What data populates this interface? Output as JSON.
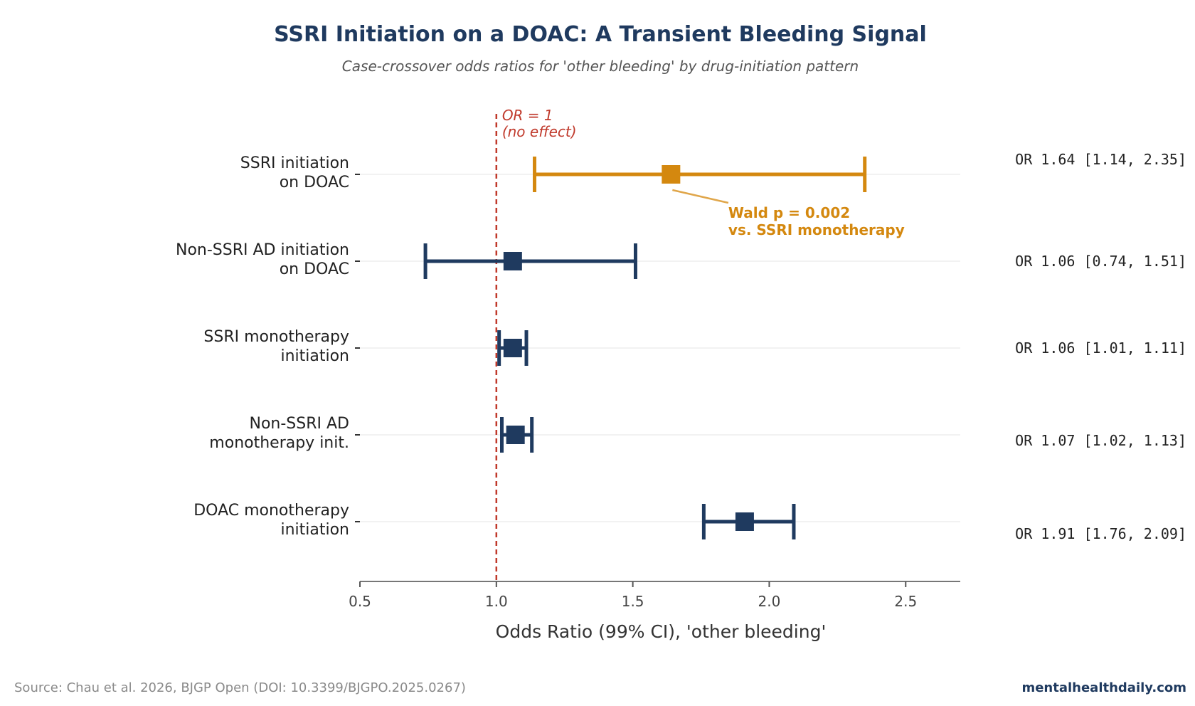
{
  "chart_data": {
    "type": "forest",
    "title": "SSRI Initiation on a DOAC: A Transient Bleeding Signal",
    "subtitle": "Case-crossover odds ratios for 'other bleeding' by drug-initiation pattern",
    "xlabel": "Odds Ratio (99% CI), 'other bleeding'",
    "xlim": [
      0.5,
      2.7
    ],
    "xticks": [
      0.5,
      1.0,
      1.5,
      2.0,
      2.5
    ],
    "xtick_labels": [
      "0.5",
      "1.0",
      "1.5",
      "2.0",
      "2.5"
    ],
    "grid": "horizontal row lines",
    "reference_line": {
      "x": 1.0,
      "label_line1": "OR = 1",
      "label_line2": "(no effect)",
      "color": "#c0392b"
    },
    "rows": [
      {
        "label_line1": "SSRI initiation",
        "label_line2": "on DOAC",
        "or": 1.64,
        "ci_low": 1.14,
        "ci_high": 2.35,
        "or_text": "OR 1.64  [1.14, 2.35]",
        "color": "#d4880f",
        "highlight": true
      },
      {
        "label_line1": "Non-SSRI AD initiation",
        "label_line2": "on DOAC",
        "or": 1.06,
        "ci_low": 0.74,
        "ci_high": 1.51,
        "or_text": "OR 1.06  [0.74, 1.51]",
        "color": "#1f3a5f",
        "highlight": false
      },
      {
        "label_line1": "SSRI monotherapy",
        "label_line2": "initiation",
        "or": 1.06,
        "ci_low": 1.01,
        "ci_high": 1.11,
        "or_text": "OR 1.06  [1.01, 1.11]",
        "color": "#1f3a5f",
        "highlight": false
      },
      {
        "label_line1": "Non-SSRI AD",
        "label_line2": "monotherapy init.",
        "or": 1.07,
        "ci_low": 1.02,
        "ci_high": 1.13,
        "or_text": "OR 1.07  [1.02, 1.13]",
        "color": "#1f3a5f",
        "highlight": false
      },
      {
        "label_line1": "DOAC monotherapy",
        "label_line2": "initiation",
        "or": 1.91,
        "ci_low": 1.76,
        "ci_high": 2.09,
        "or_text": "OR 1.91  [1.76, 2.09]",
        "color": "#1f3a5f",
        "highlight": false
      }
    ],
    "annotation": {
      "line1": "Wald p = 0.002",
      "line2": "vs. SSRI monotherapy",
      "color": "#d4880f"
    }
  },
  "footer": {
    "source": "Source: Chau et al. 2026, BJGP Open (DOI: 10.3399/BJGPO.2025.0267)",
    "brand": "mentalhealthdaily.com"
  },
  "colors": {
    "title": "#1f3a5f",
    "subtitle": "#555555",
    "text": "#222222",
    "axis": "#777777",
    "grid": "#e6e6e6",
    "footer_source": "#8a8a8a",
    "footer_brand": "#1f3a5f"
  }
}
